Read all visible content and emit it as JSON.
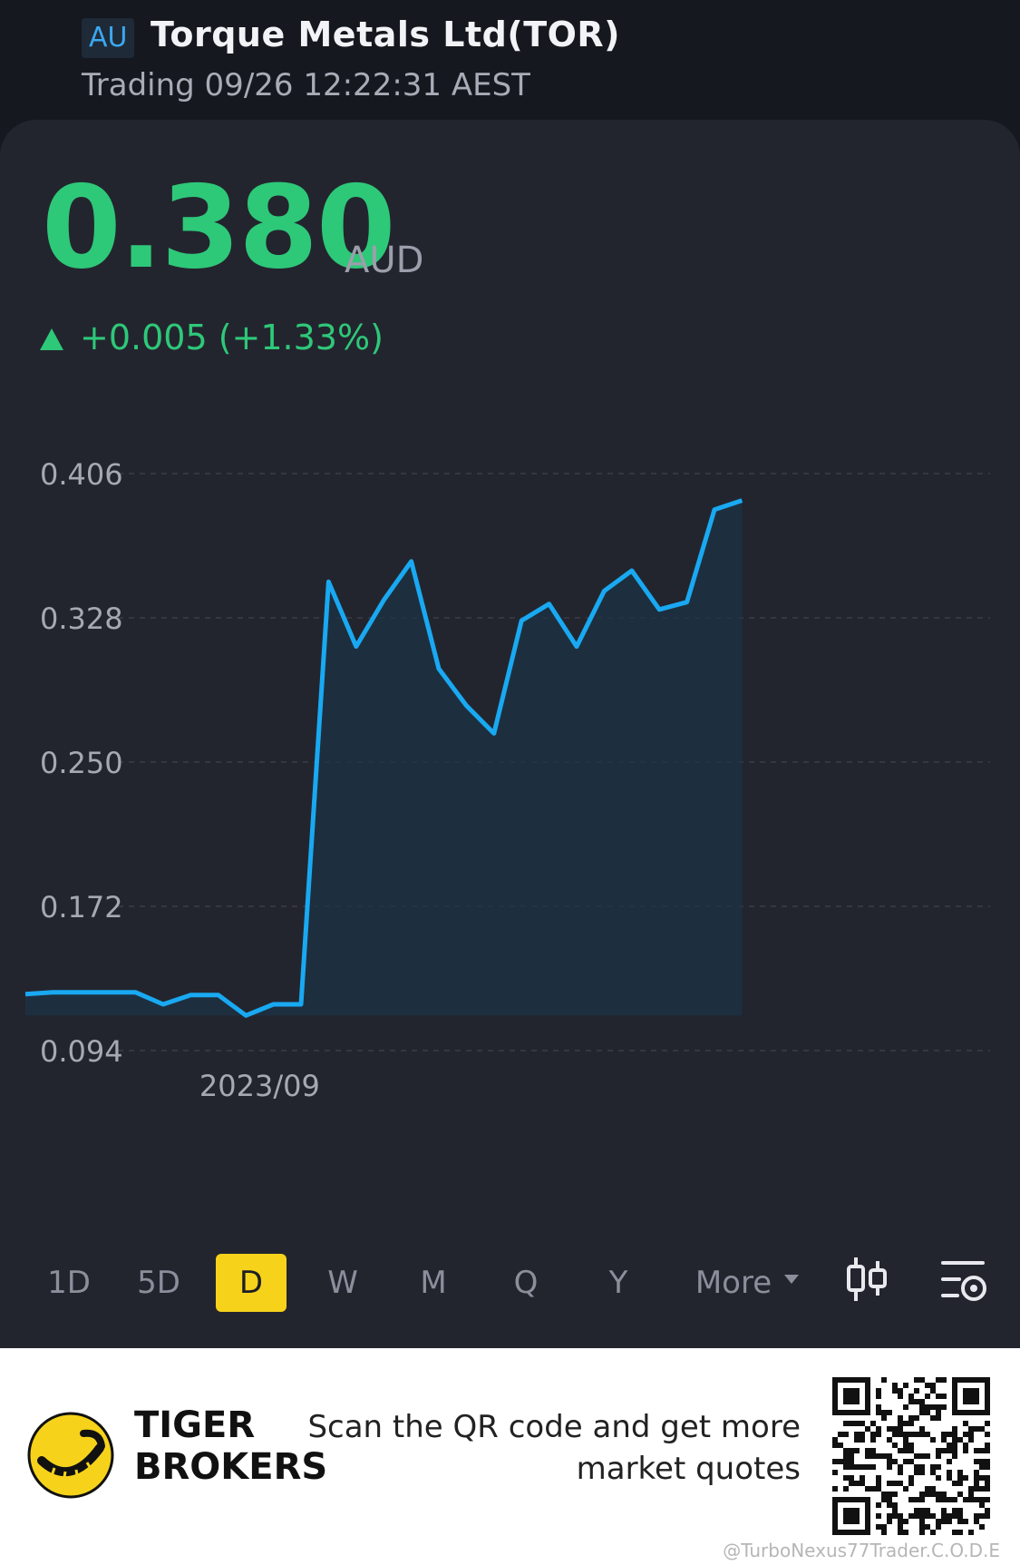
{
  "header": {
    "market_badge": "AU",
    "stock_name": "Torque Metals Ltd(TOR)",
    "trading_status": "Trading 09/26 12:22:31 AEST"
  },
  "quote": {
    "price": "0.380",
    "currency": "AUD",
    "change": "+0.005 (+1.33%)",
    "change_direction": "up"
  },
  "colors": {
    "up": "#2ec879",
    "line": "#19a9f2",
    "active_period": "#f6d31a",
    "card_bg": "#23252e"
  },
  "chart_data": {
    "type": "area",
    "y_ticks": [
      "0.406",
      "0.328",
      "0.250",
      "0.172",
      "0.094"
    ],
    "ylim": [
      0.094,
      0.406
    ],
    "x_tick_label": "2023/09",
    "x_tick_index": 8.5,
    "values": [
      0.1245,
      0.1255,
      0.1255,
      0.1255,
      0.1255,
      0.119,
      0.124,
      0.124,
      0.113,
      0.119,
      0.119,
      0.3475,
      0.3125,
      0.3375,
      0.3585,
      0.3005,
      0.2805,
      0.2655,
      0.3265,
      0.3355,
      0.3125,
      0.3425,
      0.3535,
      0.3325,
      0.3365,
      0.3865,
      0.3915
    ]
  },
  "periods": [
    {
      "label": "1D",
      "active": false
    },
    {
      "label": "5D",
      "active": false
    },
    {
      "label": "D",
      "active": true
    },
    {
      "label": "W",
      "active": false
    },
    {
      "label": "M",
      "active": false
    },
    {
      "label": "Q",
      "active": false
    },
    {
      "label": "Y",
      "active": false
    },
    {
      "label": "More",
      "active": false
    }
  ],
  "tools": {
    "candlestick_icon": "candlestick-icon",
    "indicator_settings_icon": "indicator-settings-icon"
  },
  "footer": {
    "brand_line1": "TIGER",
    "brand_line2": "BROKERS",
    "promo_line1": "Scan the QR code and get more",
    "promo_line2": "market quotes",
    "watermark": "@TurboNexus77Trader.C.O.D.E"
  }
}
